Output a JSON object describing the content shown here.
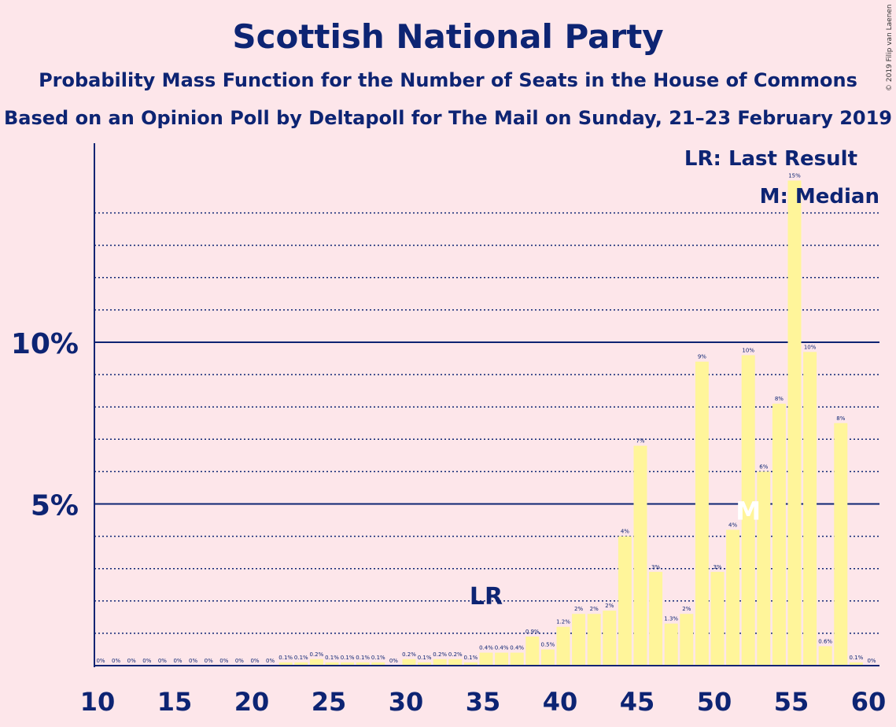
{
  "title": "Scottish National Party",
  "subtitle1": "Probability Mass Function for the Number of Seats in the House of Commons",
  "subtitle2": "Based on an Opinion Poll by Deltapoll for The Mail on Sunday, 21–23 February 2019",
  "copyright": "© 2019 Filip van Laenen",
  "colors": {
    "background": "#fde6ea",
    "bar": "#fff59a",
    "axis": "#0d2473",
    "text": "#0d2473"
  },
  "chart_data": {
    "type": "bar",
    "x": [
      10,
      11,
      12,
      13,
      14,
      15,
      16,
      17,
      18,
      19,
      20,
      21,
      22,
      23,
      24,
      25,
      26,
      27,
      28,
      29,
      30,
      31,
      32,
      33,
      34,
      35,
      36,
      37,
      38,
      39,
      40,
      41,
      42,
      43,
      44,
      45,
      46,
      47,
      48,
      49,
      50,
      51,
      52,
      53,
      54,
      55,
      56,
      57,
      58,
      59,
      60
    ],
    "values": [
      0,
      0,
      0,
      0,
      0,
      0,
      0,
      0,
      0,
      0,
      0,
      0,
      0.1,
      0.1,
      0.2,
      0.1,
      0.1,
      0.1,
      0.1,
      0,
      0.2,
      0.1,
      0.2,
      0.2,
      0.1,
      0.4,
      0.4,
      0.4,
      0.9,
      0.5,
      1.2,
      1.6,
      1.6,
      1.7,
      4.0,
      6.8,
      2.9,
      1.3,
      1.6,
      9.4,
      2.9,
      4.2,
      9.6,
      6.0,
      8.1,
      15.0,
      9.7,
      0.6,
      7.5,
      0.1,
      0
    ],
    "labels": [
      "0%",
      "0%",
      "0%",
      "0%",
      "0%",
      "0%",
      "0%",
      "0%",
      "0%",
      "0%",
      "0%",
      "0%",
      "0.1%",
      "0.1%",
      "0.2%",
      "0.1%",
      "0.1%",
      "0.1%",
      "0.1%",
      "0%",
      "0.2%",
      "0.1%",
      "0.2%",
      "0.2%",
      "0.1%",
      "0.4%",
      "0.4%",
      "0.4%",
      "0.9%",
      "0.5%",
      "1.2%",
      "2%",
      "2%",
      "2%",
      "4%",
      "7%",
      "3%",
      "1.3%",
      "2%",
      "9%",
      "3%",
      "4%",
      "10%",
      "6%",
      "8%",
      "15%",
      "10%",
      "0.6%",
      "8%",
      "0.1%",
      "0%"
    ],
    "xlim": [
      10,
      60
    ],
    "ylim": [
      0,
      16
    ],
    "x_ticks": [
      10,
      15,
      20,
      25,
      30,
      35,
      40,
      45,
      50,
      55,
      60
    ],
    "y_major_ticks": [
      5,
      10
    ],
    "y_tick_labels": [
      "5%",
      "10%"
    ],
    "last_result": {
      "x": 35,
      "label": "LR"
    },
    "median": {
      "x": 52,
      "label": "M"
    },
    "legend": [
      "LR: Last Result",
      "M: Median"
    ],
    "legend_position": "top-right",
    "grid": "dotted minor every 1%, solid at 5% and 10%"
  }
}
